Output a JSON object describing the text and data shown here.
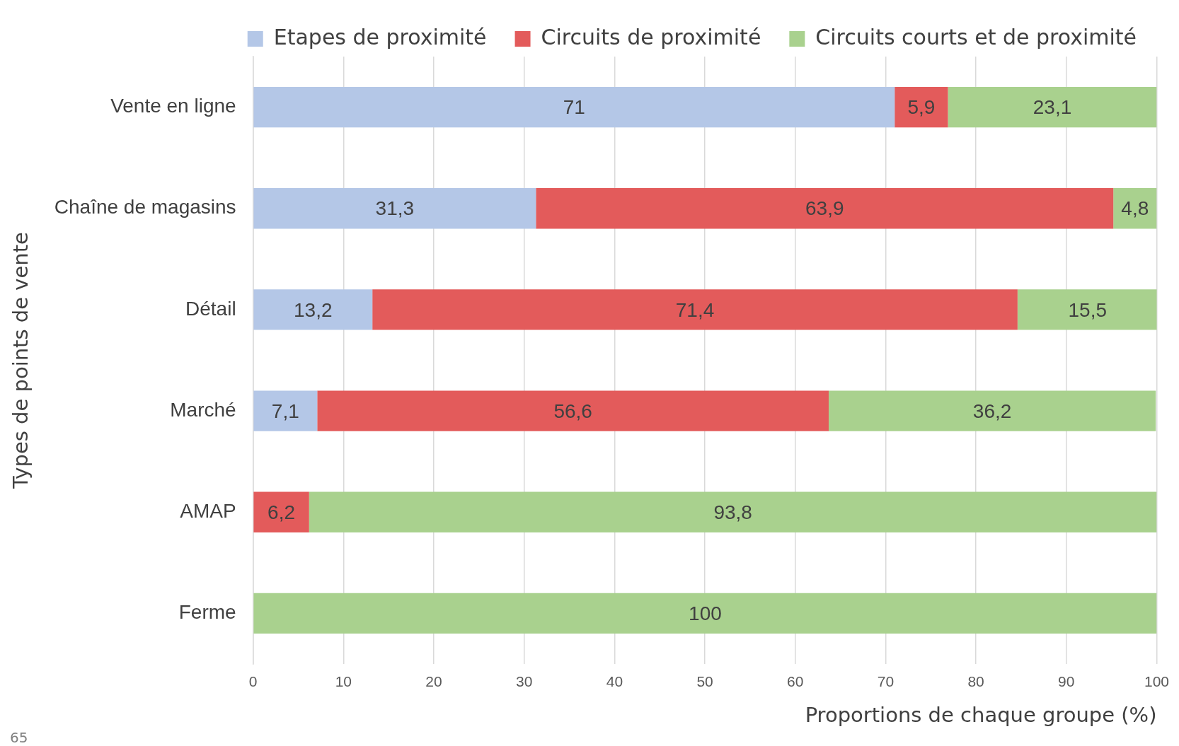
{
  "chart_data": {
    "type": "bar",
    "orientation": "horizontal",
    "stacked": true,
    "xlabel": "Proportions de chaque groupe (%)",
    "ylabel": "Types de points de vente",
    "categories": [
      "Vente en ligne",
      "Chaîne de magasins",
      "Détail",
      "Marché",
      "AMAP",
      "Ferme"
    ],
    "series": [
      {
        "name": "Etapes de proximité",
        "color": "#b4c7e7",
        "values": [
          71,
          31.3,
          13.2,
          7.1,
          null,
          null
        ],
        "value_labels": [
          "71",
          "31,3",
          "13,2",
          "7,1",
          null,
          null
        ]
      },
      {
        "name": "Circuits de proximité",
        "color": "#e35b5b",
        "values": [
          5.9,
          63.9,
          71.4,
          56.6,
          6.2,
          null
        ],
        "value_labels": [
          "5,9",
          "63,9",
          "71,4",
          "56,6",
          "6,2",
          null
        ]
      },
      {
        "name": "Circuits courts et de proximité",
        "color": "#a9d18e",
        "values": [
          23.1,
          4.8,
          15.5,
          36.2,
          93.8,
          100
        ],
        "value_labels": [
          "23,1",
          "4,8",
          "15,5",
          "36,2",
          "93,8",
          "100"
        ]
      }
    ],
    "xlim": [
      0,
      100
    ],
    "xticks": [
      0,
      10,
      20,
      30,
      40,
      50,
      60,
      70,
      80,
      90,
      100
    ],
    "grid": "x",
    "legend": "top right",
    "annotations": [
      "65"
    ]
  }
}
